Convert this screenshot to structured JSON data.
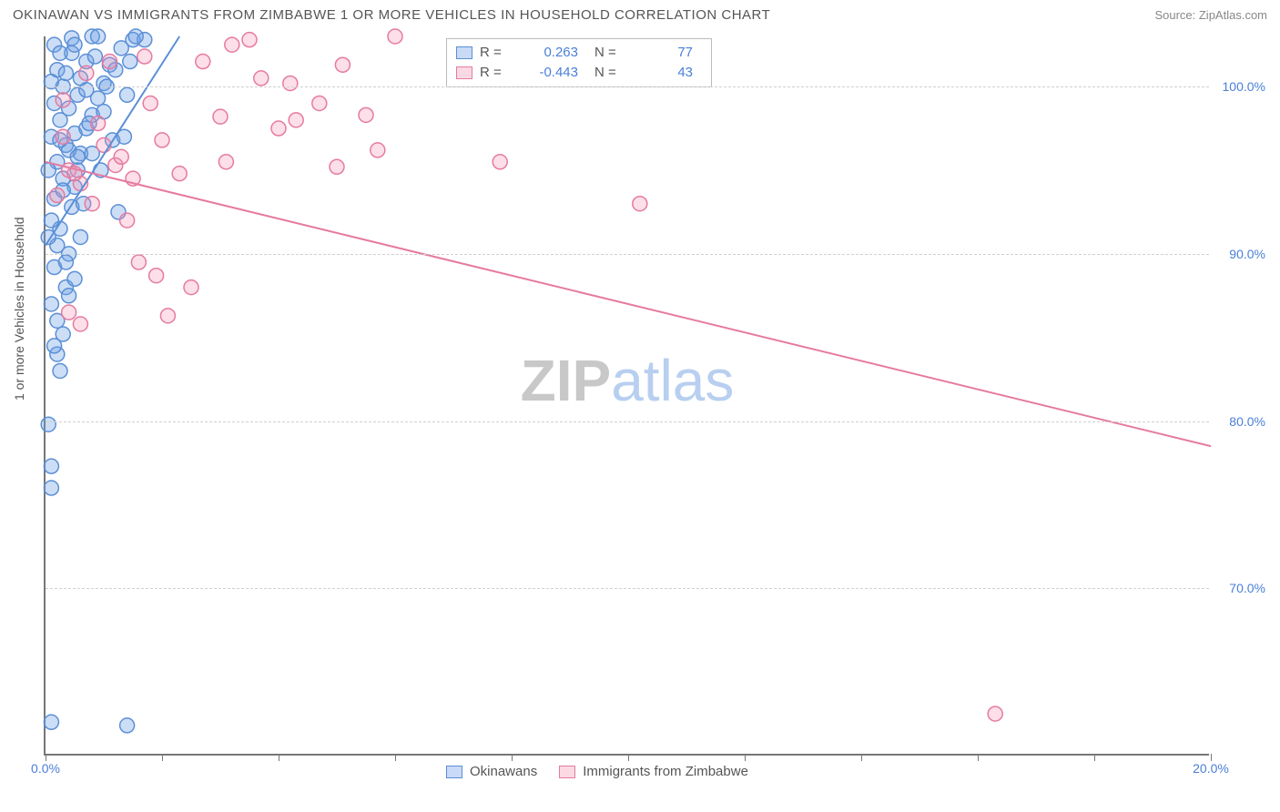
{
  "header": {
    "title": "OKINAWAN VS IMMIGRANTS FROM ZIMBABWE 1 OR MORE VEHICLES IN HOUSEHOLD CORRELATION CHART",
    "source": "Source: ZipAtlas.com"
  },
  "chart": {
    "type": "scatter",
    "ylabel": "1 or more Vehicles in Household",
    "xlim": [
      0,
      20
    ],
    "ylim": [
      60,
      103
    ],
    "x_ticks": [
      0,
      2,
      4,
      6,
      8,
      10,
      12,
      14,
      16,
      18,
      20
    ],
    "x_tick_labels": {
      "0": "0.0%",
      "20": "20.0%"
    },
    "y_ticks": [
      70,
      80,
      90,
      100
    ],
    "y_tick_labels": {
      "70": "70.0%",
      "80": "80.0%",
      "90": "90.0%",
      "100": "100.0%"
    },
    "grid_color": "#d0d0d0",
    "background_color": "#ffffff",
    "axis_color": "#777777",
    "marker_radius": 8,
    "marker_stroke_width": 1.5,
    "trend_line_width": 2,
    "watermark": {
      "zip": "ZIP",
      "atlas": "atlas"
    },
    "series": [
      {
        "name": "Okinawans",
        "color_fill": "rgba(110,160,230,0.35)",
        "color_stroke": "#5b8fd6",
        "R": "0.263",
        "N": "77",
        "trend": {
          "x1": 0,
          "y1": 90.5,
          "x2": 2.3,
          "y2": 103
        },
        "points": [
          [
            0.1,
            62
          ],
          [
            1.4,
            61.8
          ],
          [
            0.05,
            79.8
          ],
          [
            0.1,
            77.3
          ],
          [
            0.1,
            76
          ],
          [
            0.25,
            83
          ],
          [
            0.2,
            84
          ],
          [
            0.3,
            85.2
          ],
          [
            0.2,
            86
          ],
          [
            0.1,
            87
          ],
          [
            0.35,
            88
          ],
          [
            0.15,
            89.2
          ],
          [
            0.4,
            90
          ],
          [
            0.25,
            91.5
          ],
          [
            0.1,
            92
          ],
          [
            0.45,
            92.8
          ],
          [
            0.15,
            93.3
          ],
          [
            0.5,
            94
          ],
          [
            0.3,
            94.5
          ],
          [
            0.55,
            95
          ],
          [
            0.2,
            95.5
          ],
          [
            0.6,
            96
          ],
          [
            0.35,
            96.5
          ],
          [
            0.1,
            97
          ],
          [
            0.5,
            97.2
          ],
          [
            0.7,
            97.5
          ],
          [
            0.25,
            98
          ],
          [
            0.8,
            98.3
          ],
          [
            0.4,
            98.7
          ],
          [
            0.15,
            99
          ],
          [
            0.9,
            99.3
          ],
          [
            0.55,
            99.5
          ],
          [
            0.3,
            100
          ],
          [
            1.0,
            100.2
          ],
          [
            0.6,
            100.5
          ],
          [
            0.2,
            101
          ],
          [
            1.1,
            101.3
          ],
          [
            0.7,
            101.5
          ],
          [
            0.45,
            102
          ],
          [
            1.3,
            102.3
          ],
          [
            0.15,
            102.5
          ],
          [
            1.5,
            102.8
          ],
          [
            0.8,
            103
          ],
          [
            0.4,
            96.2
          ],
          [
            0.9,
            103
          ],
          [
            1.2,
            101
          ],
          [
            0.65,
            93
          ],
          [
            0.05,
            95
          ],
          [
            0.35,
            100.8
          ],
          [
            1.0,
            98.5
          ],
          [
            0.25,
            102
          ],
          [
            1.4,
            99.5
          ],
          [
            0.55,
            95.8
          ],
          [
            0.1,
            100.3
          ],
          [
            0.75,
            97.8
          ],
          [
            0.45,
            102.9
          ],
          [
            1.15,
            96.8
          ],
          [
            0.3,
            93.8
          ],
          [
            0.85,
            101.8
          ],
          [
            0.2,
            90.5
          ],
          [
            0.5,
            88.5
          ],
          [
            1.25,
            92.5
          ],
          [
            0.15,
            84.5
          ],
          [
            0.6,
            91
          ],
          [
            0.95,
            95
          ],
          [
            0.4,
            87.5
          ],
          [
            0.7,
            99.8
          ],
          [
            0.25,
            96.8
          ],
          [
            1.05,
            100
          ],
          [
            0.5,
            102.5
          ],
          [
            1.7,
            102.8
          ],
          [
            1.35,
            97
          ],
          [
            1.55,
            103
          ],
          [
            0.8,
            96
          ],
          [
            0.05,
            91
          ],
          [
            0.35,
            89.5
          ],
          [
            1.45,
            101.5
          ]
        ]
      },
      {
        "name": "Immigrants from Zimbabwe",
        "color_fill": "rgba(245,150,180,0.3)",
        "color_stroke": "#e67aa0",
        "R": "-0.443",
        "N": "43",
        "trend": {
          "x1": 0,
          "y1": 95.5,
          "x2": 20,
          "y2": 78.5
        },
        "points": [
          [
            0.4,
            95
          ],
          [
            0.6,
            94.2
          ],
          [
            0.3,
            97
          ],
          [
            0.8,
            93
          ],
          [
            1.0,
            96.5
          ],
          [
            0.5,
            94.8
          ],
          [
            1.2,
            95.3
          ],
          [
            0.7,
            100.8
          ],
          [
            1.5,
            94.5
          ],
          [
            1.1,
            101.5
          ],
          [
            0.9,
            97.8
          ],
          [
            1.4,
            92
          ],
          [
            1.7,
            101.8
          ],
          [
            1.3,
            95.8
          ],
          [
            2.0,
            96.8
          ],
          [
            1.8,
            99
          ],
          [
            1.6,
            89.5
          ],
          [
            2.3,
            94.8
          ],
          [
            2.5,
            88
          ],
          [
            2.1,
            86.3
          ],
          [
            0.4,
            86.5
          ],
          [
            2.7,
            101.5
          ],
          [
            3.2,
            102.5
          ],
          [
            3.0,
            98.2
          ],
          [
            3.5,
            102.8
          ],
          [
            3.1,
            95.5
          ],
          [
            3.7,
            100.5
          ],
          [
            4.0,
            97.5
          ],
          [
            4.3,
            98
          ],
          [
            4.2,
            100.2
          ],
          [
            4.7,
            99
          ],
          [
            5.0,
            95.2
          ],
          [
            5.1,
            101.3
          ],
          [
            5.5,
            98.3
          ],
          [
            5.7,
            96.2
          ],
          [
            6.0,
            103
          ],
          [
            7.8,
            95.5
          ],
          [
            10.2,
            93
          ],
          [
            16.3,
            62.5
          ],
          [
            0.2,
            93.5
          ],
          [
            0.6,
            85.8
          ],
          [
            1.9,
            88.7
          ],
          [
            0.3,
            99.2
          ]
        ]
      }
    ],
    "legend_top": {
      "R_label": "R  =",
      "N_label": "N  ="
    }
  }
}
